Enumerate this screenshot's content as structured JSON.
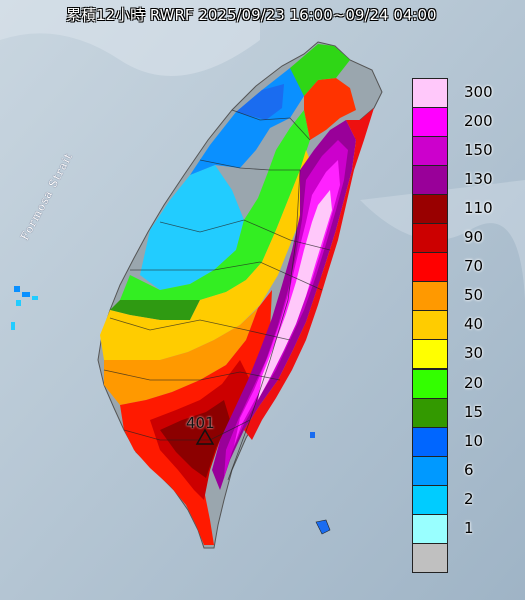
{
  "title": "累積12小時 RWRF 2025/09/23 16:00~09/24 04:00",
  "strait_label": "Formosa Strait",
  "peak_label": "401",
  "legend": [
    {
      "label": "300",
      "color": "#ffc8fa"
    },
    {
      "label": "200",
      "color": "#ff00ff"
    },
    {
      "label": "150",
      "color": "#cc00cc"
    },
    {
      "label": "130",
      "color": "#990099"
    },
    {
      "label": "110",
      "color": "#990000"
    },
    {
      "label": "90",
      "color": "#cc0000"
    },
    {
      "label": "70",
      "color": "#ff0000"
    },
    {
      "label": "50",
      "color": "#ff9900"
    },
    {
      "label": "40",
      "color": "#ffcc00"
    },
    {
      "label": "30",
      "color": "#ffff00"
    },
    {
      "label": "20",
      "color": "#33ff00"
    },
    {
      "label": "15",
      "color": "#339900"
    },
    {
      "label": "10",
      "color": "#0066ff"
    },
    {
      "label": "6",
      "color": "#0099ff"
    },
    {
      "label": "2",
      "color": "#00ccff"
    },
    {
      "label": "1",
      "color": "#99ffff"
    },
    {
      "label": "",
      "color": "#c0c0c0"
    }
  ]
}
